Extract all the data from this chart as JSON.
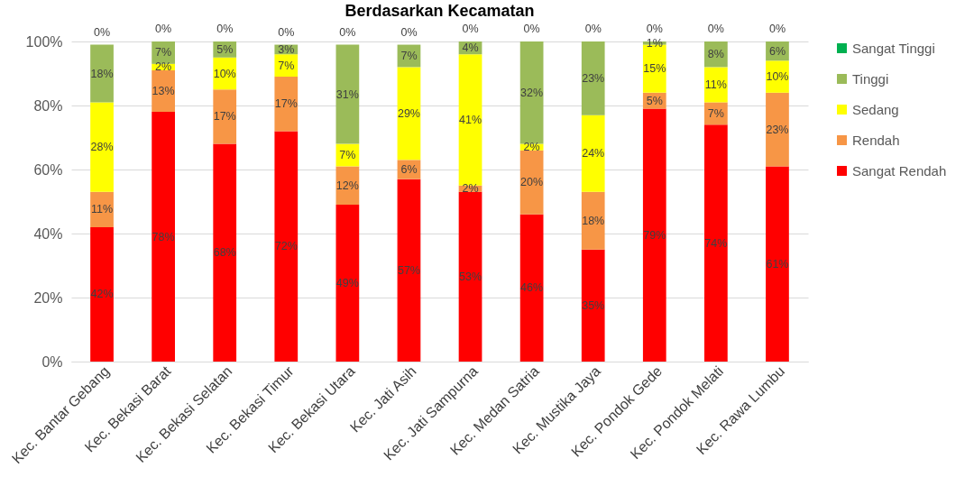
{
  "chart_data": {
    "type": "bar",
    "title": "Berdasarkan Kecamatan",
    "stacked": true,
    "legend": "right",
    "grid": "y",
    "categories": [
      "Kec. Bantar Gebang",
      "Kec. Bekasi Barat",
      "Kec. Bekasi Selatan",
      "Kec. Bekasi Timur",
      "Kec. Bekasi Utara",
      "Kec. Jati Asih",
      "Kec. Jati Sampurna",
      "Kec. Medan Satria",
      "Kec. Mustika Jaya",
      "Kec. Pondok Gede",
      "Kec. Pondok Melati",
      "Kec. Rawa Lumbu"
    ],
    "ylim": [
      0,
      100
    ],
    "yticks": [
      {
        "value": 0,
        "label": "0%"
      },
      {
        "value": 20,
        "label": "20%"
      },
      {
        "value": 40,
        "label": "40%"
      },
      {
        "value": 60,
        "label": "60%"
      },
      {
        "value": 80,
        "label": "80%"
      },
      {
        "value": 100,
        "label": "100%"
      }
    ],
    "series": [
      {
        "name": "Sangat Rendah",
        "color": "#ff0000",
        "values": [
          42,
          78,
          68,
          72,
          49,
          57,
          53,
          46,
          35,
          79,
          74,
          61
        ],
        "value_labels": [
          "42%",
          "78%",
          "68%",
          "72%",
          "49%",
          "57%",
          "53%",
          "46%",
          "35%",
          "79%",
          "74%",
          "61%"
        ]
      },
      {
        "name": "Rendah",
        "color": "#f79646",
        "values": [
          11,
          13,
          17,
          17,
          12,
          6,
          2,
          20,
          18,
          5,
          7,
          23
        ],
        "value_labels": [
          "11%",
          "13%",
          "17%",
          "17%",
          "12%",
          "6%",
          "2%",
          "20%",
          "18%",
          "5%",
          "7%",
          "23%"
        ]
      },
      {
        "name": "Sedang",
        "color": "#ffff00",
        "values": [
          28,
          2,
          10,
          7,
          7,
          29,
          41,
          2,
          24,
          15,
          11,
          10
        ],
        "value_labels": [
          "28%",
          "2%",
          "10%",
          "7%",
          "7%",
          "29%",
          "41%",
          "2%",
          "24%",
          "15%",
          "11%",
          "10%"
        ]
      },
      {
        "name": "Tinggi",
        "color": "#9bbb59",
        "values": [
          18,
          7,
          5,
          3,
          31,
          7,
          4,
          32,
          23,
          1,
          8,
          6
        ],
        "value_labels": [
          "18%",
          "7%",
          "5%",
          "3%",
          "31%",
          "7%",
          "4%",
          "32%",
          "23%",
          "1%",
          "8%",
          "6%"
        ]
      },
      {
        "name": "Sangat Tinggi",
        "color": "#00b050",
        "values": [
          0,
          0,
          0,
          0,
          0,
          0,
          0,
          0,
          0,
          0,
          0,
          0
        ],
        "value_labels": [
          "0%",
          "0%",
          "0%",
          "0%",
          "0%",
          "0%",
          "0%",
          "0%",
          "0%",
          "0%",
          "0%",
          "0%"
        ]
      }
    ]
  }
}
